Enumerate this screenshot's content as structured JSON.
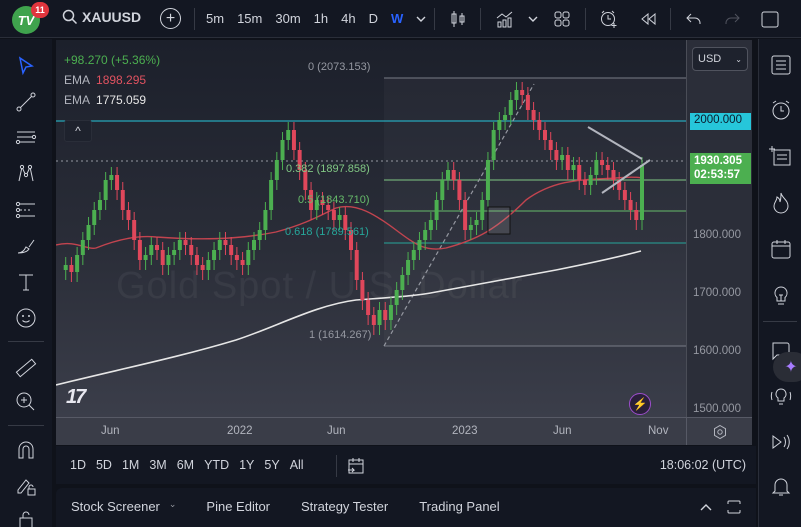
{
  "topbar": {
    "logo_text": "TV",
    "notification_count": "11",
    "symbol": "XAUUSD",
    "intervals": [
      "5m",
      "15m",
      "30m",
      "1h",
      "4h",
      "D",
      "W"
    ],
    "active_interval": "W",
    "icons": [
      "search-icon",
      "add-symbol-icon",
      "interval-dropdown-icon",
      "candles-icon",
      "indicators-icon",
      "indicators-dropdown-icon",
      "layouts-icon",
      "alert-add-icon",
      "replay-icon",
      "undo-icon",
      "redo-icon",
      "fullscreen-icon"
    ]
  },
  "legend": {
    "change": "+98.270 (+5.36%)",
    "ema1_label": "EMA",
    "ema1_value": "1898.295",
    "ema2_label": "EMA",
    "ema2_value": "1775.059",
    "collapse": "^"
  },
  "fib_levels": [
    {
      "label": "0 (2073.153)",
      "color": "#9598a1"
    },
    {
      "label": "0.382 (1897.858)",
      "color": "#81c784"
    },
    {
      "label": "0.5 (1843.710)",
      "color": "#66bb6a"
    },
    {
      "label": "0.618 (1789.561)",
      "color": "#26a69a"
    },
    {
      "label": "1 (1614.267)",
      "color": "#9598a1"
    }
  ],
  "watermark": "Gold Spot / U.S. Dollar",
  "price_scale": {
    "currency": "USD",
    "labels": [
      "1800.000",
      "1700.000",
      "1600.000",
      "1500.000"
    ],
    "line_tag": "2000.000",
    "last_price": "1930.305",
    "countdown": "02:53:57"
  },
  "time_axis": {
    "labels": [
      "Jun",
      "2022",
      "Jun",
      "2023",
      "Jun",
      "Nov"
    ]
  },
  "range_bar": {
    "ranges": [
      "1D",
      "5D",
      "1M",
      "3M",
      "6M",
      "YTD",
      "1Y",
      "5Y",
      "All"
    ],
    "clock": "18:06:02 (UTC)"
  },
  "bottom_panel": {
    "tabs": [
      "Stock Screener",
      "Pine Editor",
      "Strategy Tester",
      "Trading Panel"
    ]
  },
  "colors": {
    "up": "#4caf50",
    "down": "#e0475b",
    "accent": "#2962ff",
    "ema_fast": "#c2444f",
    "ema_slow": "#e6e6e6",
    "resistance": "#26c6da"
  }
}
